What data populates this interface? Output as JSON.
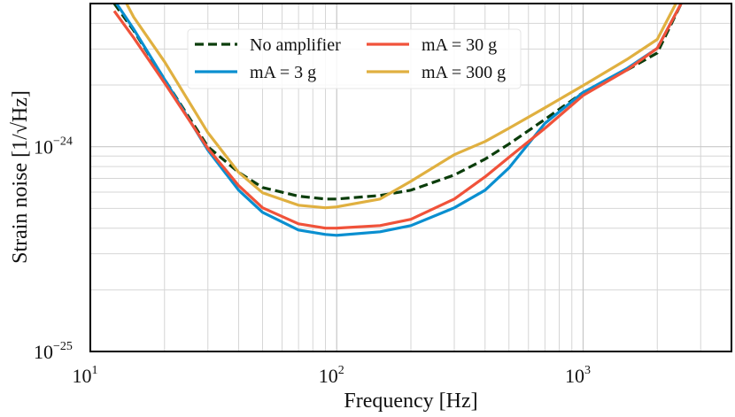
{
  "chart_data": {
    "type": "line",
    "xlabel": "Frequency [Hz]",
    "ylabel": "Strain noise [1/√Hz]",
    "log_x": true,
    "log_y": true,
    "grid": true,
    "legend_position": "upper center",
    "x": [
      12.5,
      15,
      20,
      30,
      40,
      50,
      70,
      90,
      100,
      150,
      200,
      300,
      400,
      500,
      700,
      1000,
      1500,
      2000,
      2500
    ],
    "series": [
      {
        "name": "No amplifier",
        "color": "#0b3d0b",
        "dashed": true,
        "values": [
          5e-24,
          3.69e-24,
          2.13e-24,
          1e-24,
          7.49e-25,
          6.32e-25,
          5.73e-25,
          5.55e-25,
          5.55e-25,
          5.78e-25,
          6.13e-25,
          7.27e-25,
          8.7e-25,
          1.03e-24,
          1.36e-24,
          1.84e-24,
          2.36e-24,
          2.87e-24,
          5e-24
        ]
      },
      {
        "name": "mA = 3 g",
        "color": "#0a8fd0",
        "dashed": false,
        "values": [
          5.2e-24,
          3.75e-24,
          2.13e-24,
          9.61e-25,
          6.13e-25,
          4.78e-25,
          3.92e-25,
          3.73e-25,
          3.69e-25,
          3.84e-25,
          4.12e-25,
          5.03e-25,
          6.13e-25,
          7.87e-25,
          1.3e-24,
          1.84e-24,
          2.4e-24,
          3.02e-24,
          5e-24
        ]
      },
      {
        "name": "mA = 30 g",
        "color": "#f0523a",
        "dashed": false,
        "values": [
          4.6e-24,
          3.4e-24,
          2.05e-24,
          9.8e-25,
          6.45e-25,
          5.03e-25,
          4.2e-25,
          4e-25,
          4e-25,
          4.12e-25,
          4.42e-25,
          5.55e-25,
          7.13e-25,
          8.87e-25,
          1.23e-24,
          1.78e-24,
          2.36e-24,
          3.02e-24,
          5e-24
        ]
      },
      {
        "name": "mA = 300 g",
        "color": "#e0b040",
        "dashed": false,
        "values": [
          6.5e-24,
          4.29e-24,
          2.6e-24,
          1.17e-24,
          7.49e-25,
          5.96e-25,
          5.18e-25,
          5.03e-25,
          5.08e-25,
          5.55e-25,
          6.78e-25,
          9.14e-25,
          1.06e-24,
          1.23e-24,
          1.55e-24,
          1.99e-24,
          2.66e-24,
          3.34e-24,
          5.6e-24
        ]
      }
    ],
    "xlim": [
      10,
      4000
    ],
    "ylim": [
      1e-25,
      5e-24
    ],
    "xticks": [
      {
        "value": 10,
        "label": "10",
        "exponent": "1"
      },
      {
        "value": 100,
        "label": "10",
        "exponent": "2"
      },
      {
        "value": 1000,
        "label": "10",
        "exponent": "3"
      }
    ],
    "yticks": [
      {
        "value": 1e-25,
        "label": "10",
        "exponent": "−25"
      },
      {
        "value": 1e-24,
        "label": "10",
        "exponent": "−24"
      }
    ]
  }
}
